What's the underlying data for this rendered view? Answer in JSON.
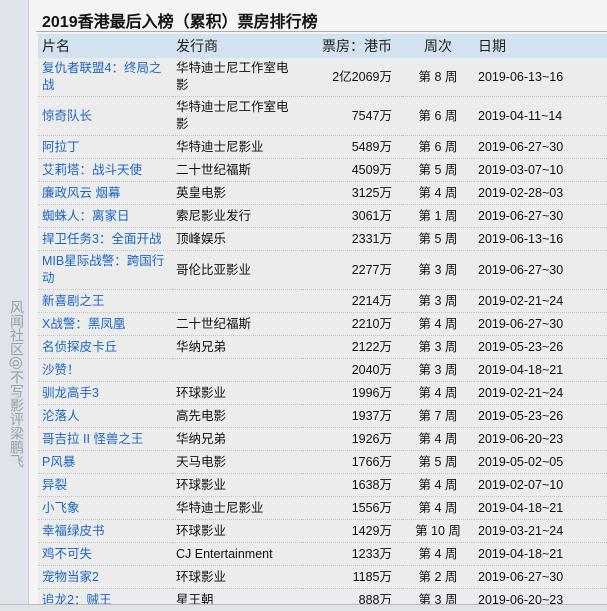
{
  "title": "2019香港最后入榜（累积）票房排行榜",
  "headers": {
    "name": "片名",
    "distributor": "发行商",
    "gross": "票房：港币",
    "week": "周次",
    "date": "日期"
  },
  "rows": [
    {
      "name": "复仇者联盟4：终局之战",
      "distributor": "华特迪士尼工作室电影",
      "gross": "2亿2069万",
      "week": "第 8 周",
      "date": "2019-06-13~16"
    },
    {
      "name": "惊奇队长",
      "distributor": "华特迪士尼工作室电影",
      "gross": "7547万",
      "week": "第 6 周",
      "date": "2019-04-11~14"
    },
    {
      "name": "阿拉丁",
      "distributor": "华特迪士尼影业",
      "gross": "5489万",
      "week": "第 6 周",
      "date": "2019-06-27~30"
    },
    {
      "name": "艾莉塔：战斗天使",
      "distributor": "二十世纪福斯",
      "gross": "4509万",
      "week": "第 5 周",
      "date": "2019-03-07~10"
    },
    {
      "name": "廉政风云 烟幕",
      "distributor": "英皇电影",
      "gross": "3125万",
      "week": "第 4 周",
      "date": "2019-02-28~03"
    },
    {
      "name": "蜘蛛人：离家日",
      "distributor": "索尼影业发行",
      "gross": "3061万",
      "week": "第 1 周",
      "date": "2019-06-27~30"
    },
    {
      "name": "捍卫任务3：全面开战",
      "distributor": "顶峰娱乐",
      "gross": "2331万",
      "week": "第 5 周",
      "date": "2019-06-13~16"
    },
    {
      "name": "MIB星际战警：跨国行动",
      "distributor": "哥伦比亚影业",
      "gross": "2277万",
      "week": "第 3 周",
      "date": "2019-06-27~30"
    },
    {
      "name": "新喜剧之王",
      "distributor": "",
      "gross": "2214万",
      "week": "第 3 周",
      "date": "2019-02-21~24"
    },
    {
      "name": "X战警：黑凤凰",
      "distributor": "二十世纪福斯",
      "gross": "2210万",
      "week": "第 4 周",
      "date": "2019-06-27~30"
    },
    {
      "name": "名侦探皮卡丘",
      "distributor": "华纳兄弟",
      "gross": "2122万",
      "week": "第 3 周",
      "date": "2019-05-23~26"
    },
    {
      "name": "沙赞！",
      "distributor": "",
      "gross": "2040万",
      "week": "第 3 周",
      "date": "2019-04-18~21"
    },
    {
      "name": "驯龙高手3",
      "distributor": "环球影业",
      "gross": "1996万",
      "week": "第 4 周",
      "date": "2019-02-21~24"
    },
    {
      "name": "沦落人",
      "distributor": "高先电影",
      "gross": "1937万",
      "week": "第 7 周",
      "date": "2019-05-23~26"
    },
    {
      "name": "哥吉拉 II 怪兽之王",
      "distributor": "华纳兄弟",
      "gross": "1926万",
      "week": "第 4 周",
      "date": "2019-06-20~23"
    },
    {
      "name": "P风暴",
      "distributor": "天马电影",
      "gross": "1766万",
      "week": "第 5 周",
      "date": "2019-05-02~05"
    },
    {
      "name": "异裂",
      "distributor": "环球影业",
      "gross": "1638万",
      "week": "第 4 周",
      "date": "2019-02-07~10"
    },
    {
      "name": "小飞象",
      "distributor": "华特迪士尼影业",
      "gross": "1556万",
      "week": "第 4 周",
      "date": "2019-04-18~21"
    },
    {
      "name": "幸福绿皮书",
      "distributor": "环球影业",
      "gross": "1429万",
      "week": "第 10 周",
      "date": "2019-03-21~24"
    },
    {
      "name": "鸡不可失",
      "distributor": "CJ Entertainment",
      "gross": "1233万",
      "week": "第 4 周",
      "date": "2019-04-18~21"
    },
    {
      "name": "宠物当家2",
      "distributor": "环球影业",
      "gross": "1185万",
      "week": "第 2 周",
      "date": "2019-06-27~30"
    },
    {
      "name": "追龙2：贼王",
      "distributor": "星王朝",
      "gross": "888万",
      "week": "第 3 周",
      "date": "2019-06-20~23"
    }
  ],
  "watermark": "风闻社区@不写影评梁鹏飞"
}
